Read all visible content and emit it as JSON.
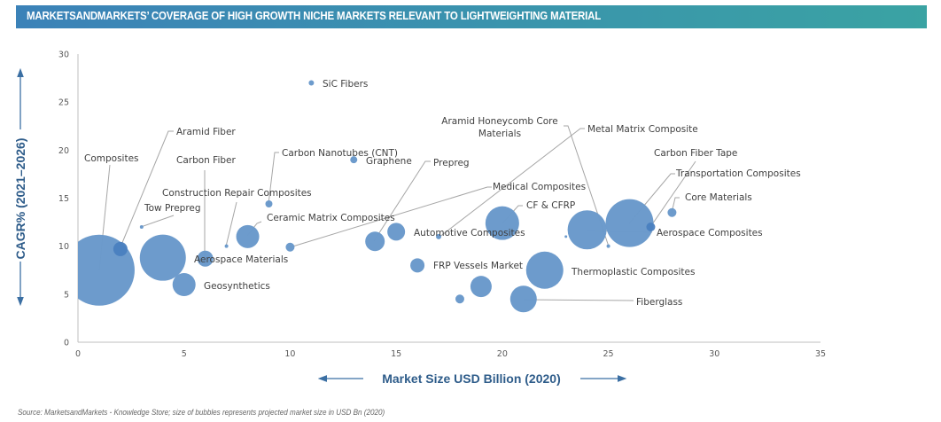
{
  "header": {
    "title": "MARKETSANDMARKETS’ COVERAGE OF HIGH GROWTH NICHE MARKETS RELEVANT TO  LIGHTWEIGHTING MATERIAL"
  },
  "footer": {
    "source": "Source: MarketsandMarkets - Knowledge Store; size of bubbles represents projected market size in USD Bn (2020)"
  },
  "colors": {
    "bubble": "#6a99cb",
    "bubble_dark": "#4a7fbf",
    "axis_title": "#2e5c8a",
    "leader": "#a6a6a6"
  },
  "chart_data": {
    "type": "scatter",
    "subtype": "bubble",
    "title": "MARKETSANDMARKETS’ COVERAGE OF HIGH GROWTH NICHE MARKETS RELEVANT TO  LIGHTWEIGHTING MATERIAL",
    "xlabel": "Market Size USD Billion (2020)",
    "ylabel": "CAGR% (2021–2026)",
    "xlim": [
      0,
      35
    ],
    "ylim": [
      0,
      30
    ],
    "xticks": [
      "0",
      "5",
      "10",
      "15",
      "20",
      "25",
      "30",
      "35"
    ],
    "yticks": [
      "0",
      "5",
      "10",
      "15",
      "20",
      "25",
      "30"
    ],
    "grid": false,
    "legend": "none",
    "points": [
      {
        "x": 1,
        "y": 7.5,
        "size": 40,
        "label": "Composites"
      },
      {
        "x": 2,
        "y": 9.7,
        "size": 8,
        "label": "Aramid Fiber",
        "dark": true
      },
      {
        "x": 3,
        "y": 12,
        "size": 2,
        "label": "Tow Prepreg"
      },
      {
        "x": 4,
        "y": 8.8,
        "size": 26,
        "label": ""
      },
      {
        "x": 5,
        "y": 6,
        "size": 13,
        "label": "Geosynthetics"
      },
      {
        "x": 6,
        "y": 8.7,
        "size": 9,
        "label": "Carbon Fiber"
      },
      {
        "x": 6.5,
        "y": 8.7,
        "size": 0,
        "label": "Aerospace Materials"
      },
      {
        "x": 7,
        "y": 10,
        "size": 2,
        "label": "Construction Repair Composites"
      },
      {
        "x": 8,
        "y": 11,
        "size": 13,
        "label": "Ceramic Matrix Composites"
      },
      {
        "x": 9,
        "y": 14.4,
        "size": 4,
        "label": "Carbon Nanotubes (CNT)"
      },
      {
        "x": 10,
        "y": 9.9,
        "size": 5,
        "label": "Medical Composites"
      },
      {
        "x": 11,
        "y": 27,
        "size": 3,
        "label": "SiC Fibers"
      },
      {
        "x": 13,
        "y": 19,
        "size": 4,
        "label": "Graphene"
      },
      {
        "x": 14,
        "y": 10.5,
        "size": 11,
        "label": "Prepreg"
      },
      {
        "x": 15,
        "y": 11.5,
        "size": 10,
        "label": ""
      },
      {
        "x": 16,
        "y": 8,
        "size": 8,
        "label": "FRP Vessels Market"
      },
      {
        "x": 17,
        "y": 11,
        "size": 3,
        "label": "Metal Matrix Composite"
      },
      {
        "x": 18,
        "y": 4.5,
        "size": 5,
        "label": ""
      },
      {
        "x": 19,
        "y": 5.8,
        "size": 12,
        "label": ""
      },
      {
        "x": 20,
        "y": 12.4,
        "size": 19,
        "label": "CF & CFRP"
      },
      {
        "x": 21,
        "y": 4.5,
        "size": 15,
        "label": "Fiberglass"
      },
      {
        "x": 22,
        "y": 7.5,
        "size": 21,
        "label": "Thermoplastic Composites"
      },
      {
        "x": 23,
        "y": 11,
        "size": 1.5,
        "label": ""
      },
      {
        "x": 24,
        "y": 11.7,
        "size": 22,
        "label": ""
      },
      {
        "x": 25,
        "y": 10,
        "size": 2,
        "label": "Aramid Honeycomb Core Materials"
      },
      {
        "x": 26,
        "y": 12.4,
        "size": 27,
        "label": "Transportation Composites"
      },
      {
        "x": 27,
        "y": 12,
        "size": 5,
        "label": "Carbon Fiber Tape",
        "dark": true
      },
      {
        "x": 28,
        "y": 13.5,
        "size": 5,
        "label": "Core Materials"
      }
    ],
    "annotations": [
      {
        "text": "Composites",
        "lines": [
          "Composites"
        ]
      },
      {
        "text": "Aramid Fiber",
        "lines": [
          "Aramid Fiber"
        ]
      },
      {
        "text": "Carbon Fiber",
        "lines": [
          "Carbon Fiber"
        ]
      },
      {
        "text": "Carbon Nanotubes (CNT)",
        "lines": [
          "Carbon Nanotubes (CNT)"
        ]
      },
      {
        "text": "Construction Repair Composites",
        "lines": [
          "Construction Repair Composites"
        ]
      },
      {
        "text": "Tow Prepreg",
        "lines": [
          "Tow Prepreg"
        ]
      },
      {
        "text": "Ceramic Matrix Composites",
        "lines": [
          "Ceramic Matrix Composites"
        ]
      },
      {
        "text": "Aerospace Materials",
        "lines": [
          "Aerospace Materials"
        ]
      },
      {
        "text": "Geosynthetics",
        "lines": [
          "Geosynthetics"
        ]
      },
      {
        "text": "SiC Fibers",
        "lines": [
          "SiC Fibers"
        ]
      },
      {
        "text": "Graphene",
        "lines": [
          "Graphene"
        ]
      },
      {
        "text": "Prepreg",
        "lines": [
          "Prepreg"
        ]
      },
      {
        "text": "Medical Composites",
        "lines": [
          "Medical Composites"
        ]
      },
      {
        "text": "Aramid Honeycomb Core Materials",
        "lines": [
          "Aramid Honeycomb Core",
          "Materials"
        ]
      },
      {
        "text": "Metal Matrix Composite",
        "lines": [
          "Metal Matrix Composite"
        ]
      },
      {
        "text": "Automotive Composites",
        "lines": [
          "Automotive Composites"
        ]
      },
      {
        "text": "CF & CFRP",
        "lines": [
          "CF & CFRP"
        ]
      },
      {
        "text": "FRP Vessels Market",
        "lines": [
          "FRP Vessels Market"
        ]
      },
      {
        "text": "Thermoplastic Composites",
        "lines": [
          "Thermoplastic Composites"
        ]
      },
      {
        "text": "Fiberglass",
        "lines": [
          "Fiberglass"
        ]
      },
      {
        "text": "Carbon Fiber Tape",
        "lines": [
          "Carbon Fiber Tape"
        ]
      },
      {
        "text": "Transportation Composites",
        "lines": [
          "Transportation Composites"
        ]
      },
      {
        "text": "Core Materials",
        "lines": [
          "Core Materials"
        ]
      },
      {
        "text": "Aerospace Composites",
        "lines": [
          "Aerospace Composites"
        ]
      }
    ]
  }
}
